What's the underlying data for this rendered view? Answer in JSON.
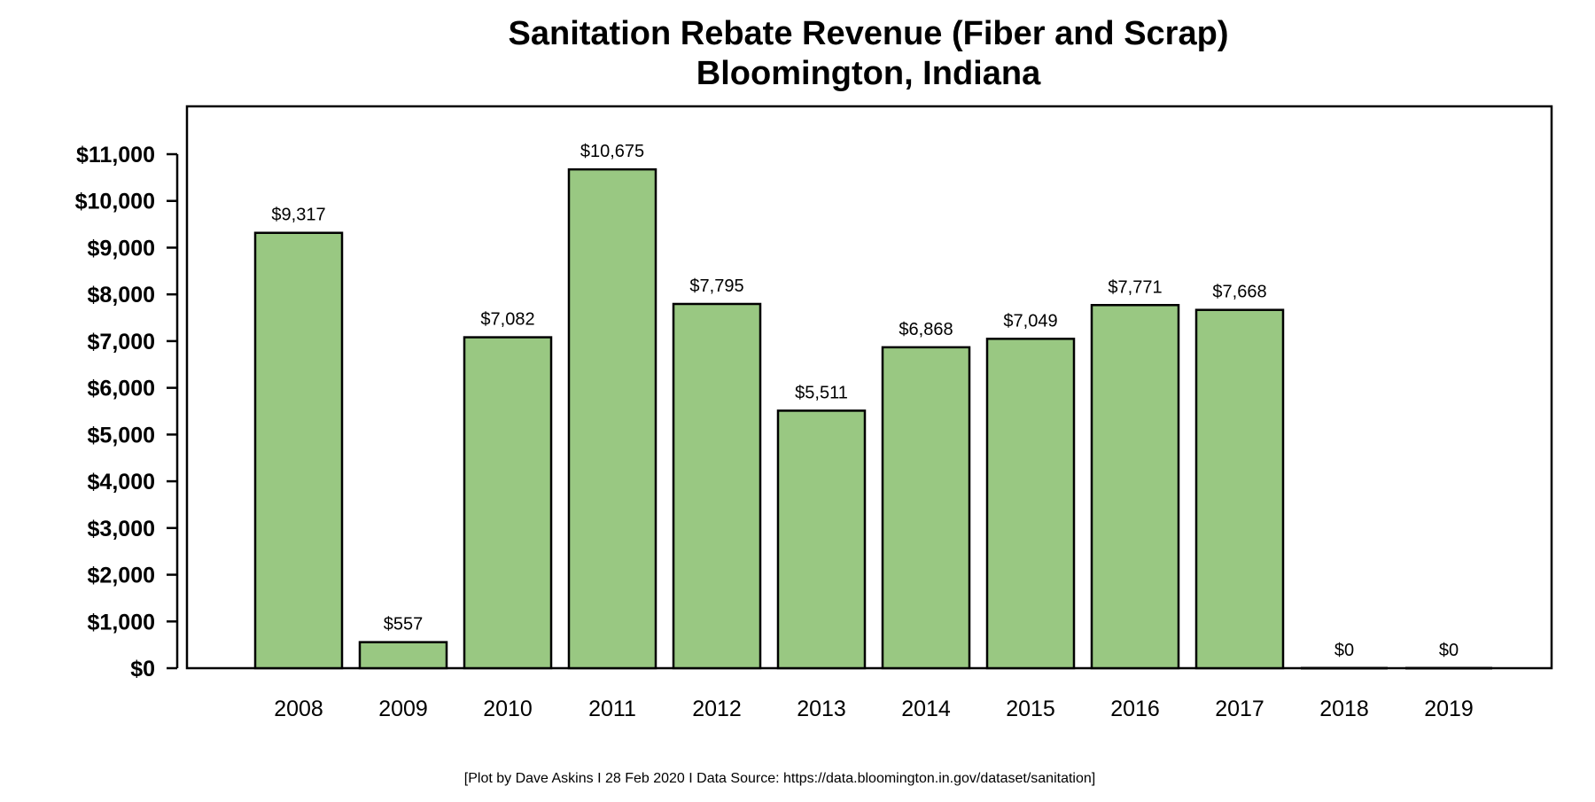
{
  "chart_data": {
    "type": "bar",
    "title": "Sanitation Rebate Revenue (Fiber and Scrap)",
    "subtitle": "Bloomington, Indiana",
    "caption": "[Plot by Dave Askins I 28 Feb 2020 I Data Source: https://data.bloomington.in.gov/dataset/sanitation]",
    "categories": [
      "2008",
      "2009",
      "2010",
      "2011",
      "2012",
      "2013",
      "2014",
      "2015",
      "2016",
      "2017",
      "2018",
      "2019"
    ],
    "values": [
      9317,
      557,
      7082,
      10675,
      7795,
      5511,
      6868,
      7049,
      7771,
      7668,
      0,
      0
    ],
    "data_labels": [
      "$9,317",
      "$557",
      "$7,082",
      "$10,675",
      "$7,795",
      "$5,511",
      "$6,868",
      "$7,049",
      "$7,771",
      "$7,668",
      "$0",
      "$0"
    ],
    "y_ticks": [
      0,
      1000,
      2000,
      3000,
      4000,
      5000,
      6000,
      7000,
      8000,
      9000,
      10000,
      11000
    ],
    "y_tick_labels": [
      "$0",
      "$1,000",
      "$2,000",
      "$3,000",
      "$4,000",
      "$5,000",
      "$6,000",
      "$7,000",
      "$8,000",
      "$9,000",
      "$10,000",
      "$11,000"
    ],
    "ylim": [
      0,
      11000
    ],
    "xlabel": "",
    "ylabel": "",
    "grid": false,
    "legend": "none",
    "colors": {
      "bar_fill": "#99c882",
      "bar_stroke": "#000000"
    }
  }
}
